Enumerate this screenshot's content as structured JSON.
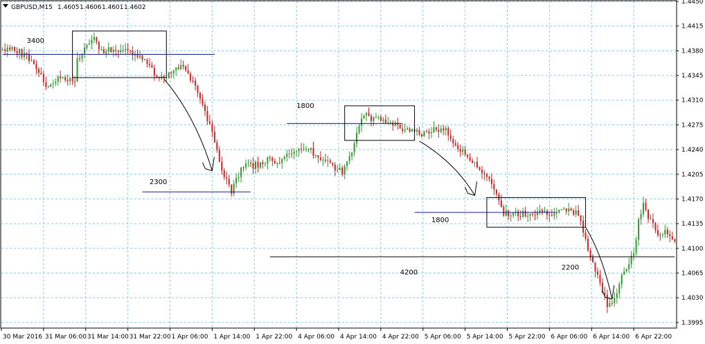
{
  "chart_data": {
    "type": "candlestick",
    "symbol": "GBPUSD,M15",
    "header_values": [
      "1.4605",
      "1.4606",
      "1.4601",
      "1.4602"
    ],
    "y_ticks": [
      "1.4450",
      "1.4415",
      "1.4380",
      "1.4345",
      "1.4310",
      "1.4275",
      "1.4240",
      "1.4205",
      "1.4170",
      "1.4135",
      "1.4100",
      "1.4065",
      "1.4030",
      "1.3995"
    ],
    "ylim": [
      1.3988,
      1.445
    ],
    "x_ticks": [
      "30 Mar 2016",
      "31 Mar 06:00",
      "31 Mar 14:00",
      "31 Mar 22:00",
      "1 Apr 06:00",
      "1 Apr 14:00",
      "1 Apr 22:00",
      "4 Apr 06:00",
      "4 Apr 14:00",
      "4 Apr 22:00",
      "5 Apr 06:00",
      "5 Apr 14:00",
      "5 Apr 22:00",
      "6 Apr 06:00",
      "6 Apr 14:00",
      "6 Apr 22:00"
    ],
    "grid": true,
    "colors": {
      "up": "#2e9a2e",
      "down": "#d42020",
      "grid": "#8cc8dc",
      "level": "#1a1a8c"
    },
    "price_path": [
      [
        0,
        1.4382
      ],
      [
        5,
        1.4382
      ],
      [
        10,
        1.4372
      ],
      [
        15,
        1.4353
      ],
      [
        18,
        1.4332
      ],
      [
        25,
        1.4342
      ],
      [
        30,
        1.4333
      ],
      [
        31,
        1.4365
      ],
      [
        35,
        1.439
      ],
      [
        38,
        1.4403
      ],
      [
        41,
        1.4378
      ],
      [
        45,
        1.4382
      ],
      [
        50,
        1.438
      ],
      [
        55,
        1.4375
      ],
      [
        59,
        1.4371
      ],
      [
        63,
        1.4348
      ],
      [
        66,
        1.434
      ],
      [
        72,
        1.4355
      ],
      [
        75,
        1.4362
      ],
      [
        78,
        1.434
      ],
      [
        82,
        1.4315
      ],
      [
        85,
        1.428
      ],
      [
        88,
        1.4255
      ],
      [
        90,
        1.4225
      ],
      [
        93,
        1.4195
      ],
      [
        95,
        1.418
      ],
      [
        97,
        1.42
      ],
      [
        100,
        1.4215
      ],
      [
        105,
        1.4218
      ],
      [
        110,
        1.4225
      ],
      [
        115,
        1.4222
      ],
      [
        120,
        1.4235
      ],
      [
        125,
        1.4245
      ],
      [
        130,
        1.4232
      ],
      [
        135,
        1.4222
      ],
      [
        138,
        1.4215
      ],
      [
        141,
        1.4207
      ],
      [
        144,
        1.4228
      ],
      [
        147,
        1.4262
      ],
      [
        150,
        1.429
      ],
      [
        153,
        1.4285
      ],
      [
        156,
        1.4282
      ],
      [
        160,
        1.4278
      ],
      [
        165,
        1.427
      ],
      [
        170,
        1.4265
      ],
      [
        174,
        1.4263
      ],
      [
        177,
        1.4262
      ],
      [
        180,
        1.427
      ],
      [
        184,
        1.4266
      ],
      [
        186,
        1.4255
      ],
      [
        190,
        1.4238
      ],
      [
        195,
        1.4225
      ],
      [
        199,
        1.4207
      ],
      [
        204,
        1.4185
      ],
      [
        206,
        1.417
      ],
      [
        208,
        1.415
      ],
      [
        212,
        1.4148
      ],
      [
        218,
        1.415
      ],
      [
        224,
        1.4152
      ],
      [
        230,
        1.415
      ],
      [
        234,
        1.4152
      ],
      [
        238,
        1.4152
      ],
      [
        240,
        1.4135
      ],
      [
        243,
        1.41
      ],
      [
        246,
        1.407
      ],
      [
        249,
        1.404
      ],
      [
        251,
        1.402
      ],
      [
        254,
        1.403
      ],
      [
        257,
        1.406
      ],
      [
        260,
        1.408
      ],
      [
        262,
        1.409
      ],
      [
        264,
        1.414
      ],
      [
        266,
        1.416
      ],
      [
        268,
        1.4145
      ],
      [
        270,
        1.4135
      ],
      [
        272,
        1.4118
      ],
      [
        275,
        1.4122
      ],
      [
        279,
        1.4115
      ]
    ],
    "bar_count": 280,
    "levels": [
      {
        "x": [
          0,
          88
        ],
        "y": 1.4375,
        "color": "#1a1a8c"
      },
      {
        "x": [
          58,
          103
        ],
        "y": 1.418,
        "color": "#1a1a8c"
      },
      {
        "x": [
          118,
          166
        ],
        "y": 1.4277,
        "color": "#1a1a8c"
      },
      {
        "x": [
          171,
          230
        ],
        "y": 1.4151,
        "color": "#1a1a8c"
      },
      {
        "x": [
          111,
          279
        ],
        "y": 1.4088,
        "color": "#000000"
      }
    ],
    "boxes": [
      {
        "x": [
          29,
          68
        ],
        "y": [
          1.4342,
          1.4408
        ]
      },
      {
        "x": [
          142,
          171
        ],
        "y": [
          1.4253,
          1.4302
        ]
      },
      {
        "x": [
          201,
          242
        ],
        "y": [
          1.413,
          1.4172
        ]
      }
    ],
    "arrows": [
      {
        "from": [
          67,
          1.434
        ],
        "to": [
          87,
          1.421
        ]
      },
      {
        "from": [
          173,
          1.4252
        ],
        "to": [
          196,
          1.4175
        ]
      },
      {
        "from": [
          242,
          1.413
        ],
        "to": [
          253,
          1.4028
        ]
      }
    ],
    "annotations": [
      {
        "text": "3400",
        "x": 10,
        "y": 1.4391
      },
      {
        "text": "2300",
        "x": 61,
        "y": 1.4191
      },
      {
        "text": "1800",
        "x": 122,
        "y": 1.4299
      },
      {
        "text": "1800",
        "x": 178,
        "y": 1.4137
      },
      {
        "text": "4200",
        "x": 165,
        "y": 1.4063
      },
      {
        "text": "2200",
        "x": 232,
        "y": 1.407
      }
    ]
  }
}
